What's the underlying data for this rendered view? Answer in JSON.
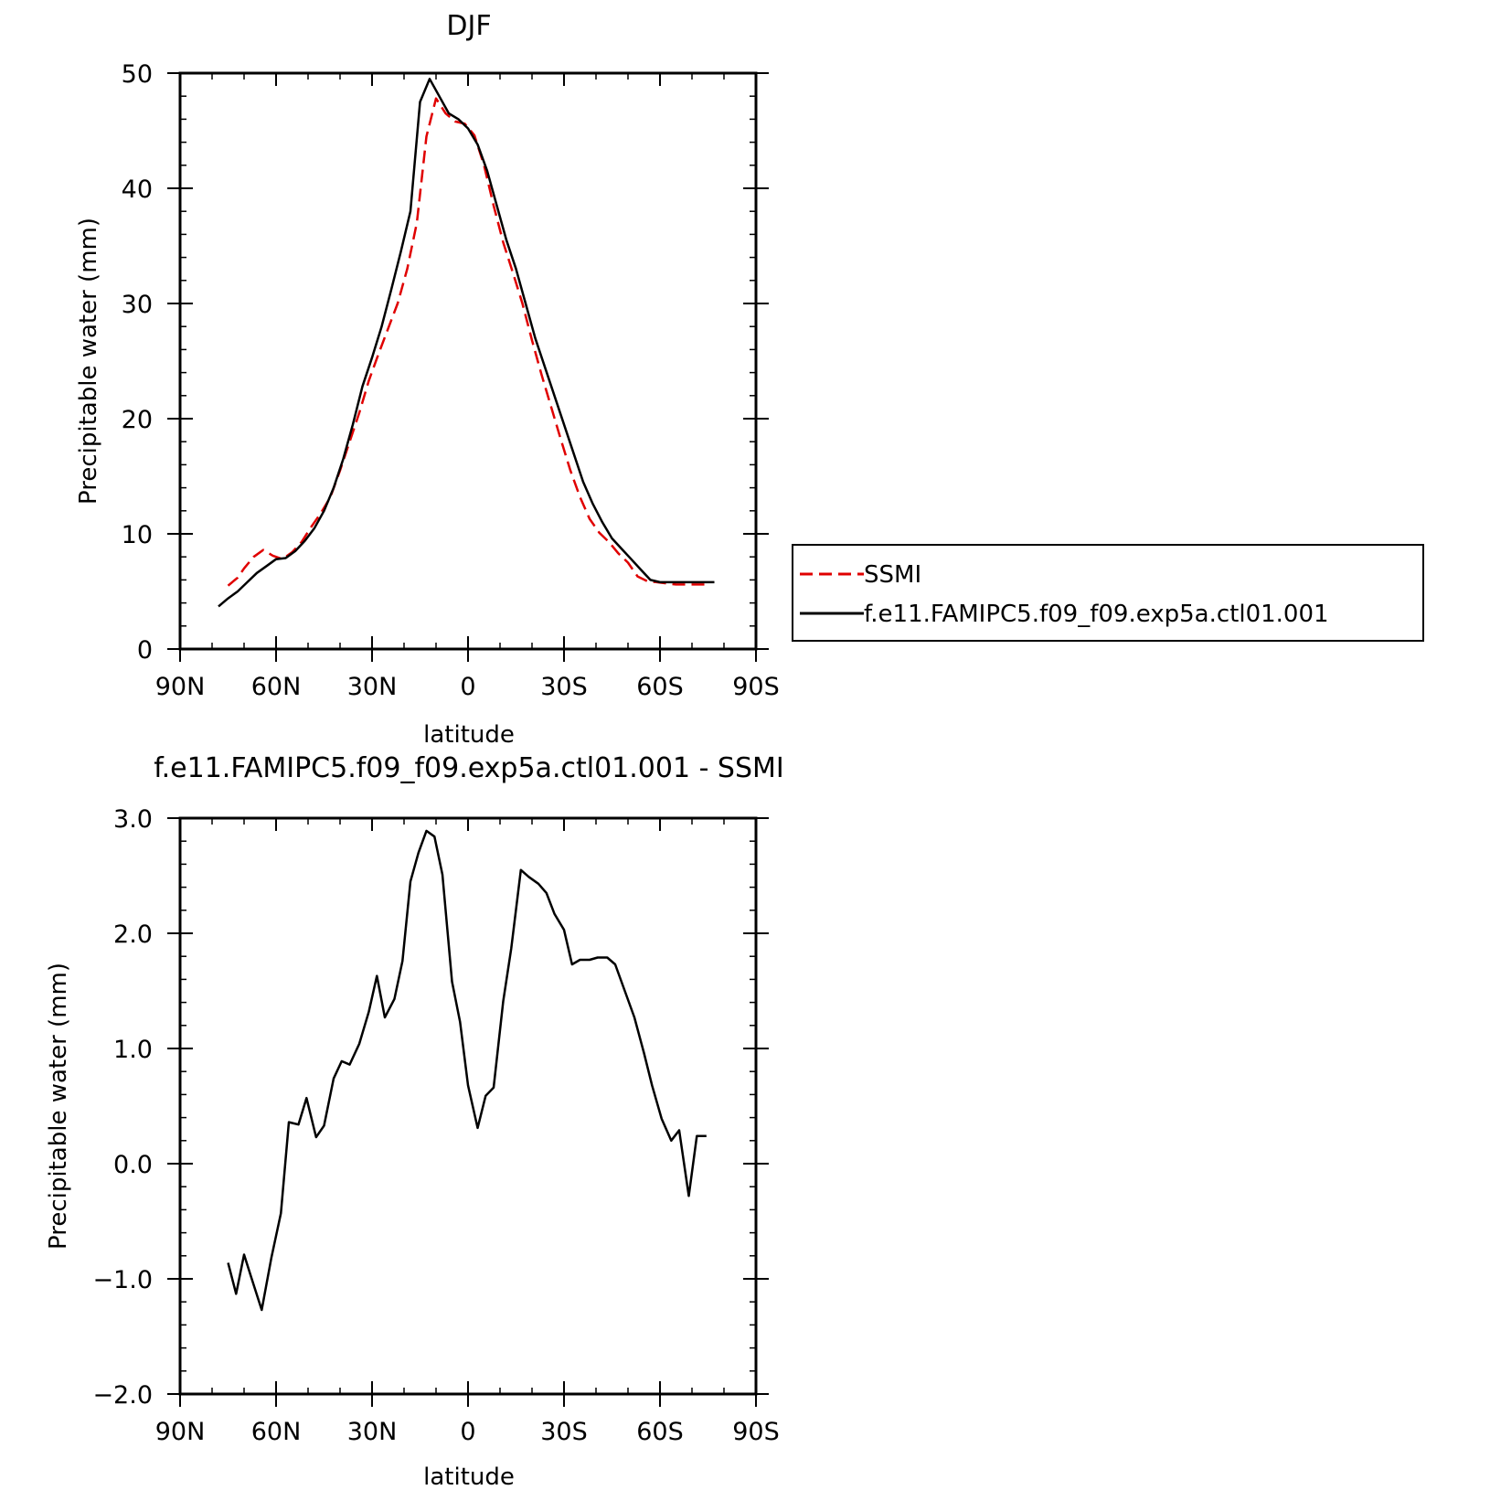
{
  "chart_data": [
    {
      "type": "line",
      "title": "DJF",
      "xlabel": "latitude",
      "ylabel": "Precipitable water (mm)",
      "xlim": [
        90,
        -90
      ],
      "ylim": [
        0,
        50
      ],
      "x_ticks": [
        90,
        60,
        30,
        0,
        -30,
        -60,
        -90
      ],
      "x_tick_labels": [
        "90N",
        "60N",
        "30N",
        "0",
        "30S",
        "60S",
        "90S"
      ],
      "y_ticks": [
        0,
        10,
        20,
        30,
        40,
        50
      ],
      "y_tick_labels": [
        "0",
        "10",
        "20",
        "30",
        "40",
        "50"
      ],
      "grid": false,
      "legend_position": "right",
      "series": [
        {
          "name": "SSMI",
          "color": "#e00000",
          "dash": "dashed",
          "x": [
            75,
            72,
            70,
            67,
            64,
            61,
            58,
            55,
            52,
            49,
            46,
            43,
            40,
            37,
            34,
            31,
            28,
            25,
            22,
            19,
            16,
            13,
            10,
            7,
            4,
            1,
            -2,
            -5,
            -8,
            -11,
            -14,
            -17,
            -20,
            -23,
            -26,
            -29,
            -32,
            -35,
            -38,
            -41,
            -44,
            -47,
            -50,
            -53,
            -56,
            -59,
            -62,
            -65,
            -68,
            -71,
            -74
          ],
          "values": [
            5.5,
            6.2,
            7.0,
            8.0,
            8.6,
            8.1,
            7.8,
            8.4,
            9.3,
            10.6,
            11.8,
            13.2,
            15.5,
            18.0,
            20.5,
            23.3,
            25.6,
            27.8,
            30.0,
            33.0,
            37.0,
            44.5,
            47.8,
            46.5,
            45.8,
            45.6,
            44.6,
            42.0,
            38.5,
            35.3,
            32.7,
            30.0,
            26.8,
            23.8,
            21.0,
            18.2,
            15.5,
            13.2,
            11.3,
            10.1,
            9.3,
            8.3,
            7.5,
            6.3,
            5.9,
            5.8,
            5.7,
            5.6,
            5.6,
            5.6,
            5.6
          ]
        },
        {
          "name": "f.e11.FAMIPC5.f09_f09.exp5a.ctl01.001",
          "color": "#000000",
          "dash": "solid",
          "x": [
            78,
            75,
            72,
            69,
            66,
            63,
            60,
            57,
            54,
            51,
            48,
            45,
            42,
            39,
            36,
            33,
            30,
            27,
            24,
            21,
            18,
            15,
            12,
            9,
            6,
            3,
            0,
            -3,
            -6,
            -9,
            -12,
            -15,
            -18,
            -21,
            -24,
            -27,
            -30,
            -33,
            -36,
            -39,
            -42,
            -45,
            -48,
            -51,
            -54,
            -57,
            -60,
            -63,
            -66,
            -69,
            -72,
            -75,
            -77
          ],
          "values": [
            3.7,
            4.4,
            5.0,
            5.8,
            6.6,
            7.2,
            7.8,
            7.9,
            8.5,
            9.4,
            10.5,
            12.0,
            14.0,
            16.5,
            19.5,
            22.8,
            25.3,
            28.0,
            31.2,
            34.5,
            38.0,
            47.5,
            49.5,
            48.0,
            46.5,
            46.0,
            45.2,
            43.8,
            41.5,
            38.5,
            35.5,
            33.0,
            30.0,
            27.0,
            24.5,
            22.0,
            19.5,
            17.0,
            14.5,
            12.6,
            11.0,
            9.6,
            8.7,
            7.8,
            6.9,
            6.0,
            5.8,
            5.8,
            5.8,
            5.8,
            5.8,
            5.8,
            5.8
          ]
        }
      ],
      "legend": [
        "SSMI",
        "f.e11.FAMIPC5.f09_f09.exp5a.ctl01.001"
      ]
    },
    {
      "type": "line",
      "title": "f.e11.FAMIPC5.f09_f09.exp5a.ctl01.001  -  SSMI",
      "xlabel": "latitude",
      "ylabel": "Precipitable water (mm)",
      "xlim": [
        90,
        -90
      ],
      "ylim": [
        -2.0,
        3.0
      ],
      "x_ticks": [
        90,
        60,
        30,
        0,
        -30,
        -60,
        -90
      ],
      "x_tick_labels": [
        "90N",
        "60N",
        "30N",
        "0",
        "30S",
        "60S",
        "90S"
      ],
      "y_ticks": [
        -2.0,
        -1.0,
        0.0,
        1.0,
        2.0,
        3.0
      ],
      "y_tick_labels": [
        "−2.0",
        "−1.0",
        "0.0",
        "1.0",
        "2.0",
        "3.0"
      ],
      "grid": false,
      "series": [
        {
          "color": "#000000",
          "dash": "solid",
          "x": [
            75,
            72.5,
            70,
            67.5,
            64.5,
            61.5,
            58.5,
            56,
            53,
            50.5,
            47.5,
            45,
            42,
            39.5,
            37,
            34,
            31,
            28.5,
            26,
            23,
            20.5,
            18,
            15.5,
            13,
            10.5,
            8,
            5,
            2.5,
            0,
            -3,
            -5.5,
            -8,
            -11,
            -13.5,
            -16.5,
            -19,
            -22,
            -24.5,
            -27,
            -30,
            -32.5,
            -35,
            -38,
            -40.5,
            -43.5,
            -46,
            -49,
            -52,
            -55,
            -57.5,
            -60.5,
            -63.5,
            -66,
            -69,
            -71.5,
            -74.5
          ],
          "values": [
            -0.86,
            -1.13,
            -0.79,
            -1.01,
            -1.27,
            -0.82,
            -0.43,
            0.36,
            0.34,
            0.57,
            0.23,
            0.33,
            0.74,
            0.89,
            0.86,
            1.04,
            1.32,
            1.63,
            1.27,
            1.43,
            1.76,
            2.45,
            2.7,
            2.89,
            2.84,
            2.51,
            1.58,
            1.23,
            0.68,
            0.31,
            0.59,
            0.66,
            1.41,
            1.87,
            2.55,
            2.49,
            2.43,
            2.35,
            2.17,
            2.03,
            1.73,
            1.77,
            1.77,
            1.79,
            1.79,
            1.73,
            1.5,
            1.27,
            0.96,
            0.68,
            0.39,
            0.2,
            0.29,
            -0.28,
            0.24,
            0.24
          ]
        }
      ]
    }
  ]
}
